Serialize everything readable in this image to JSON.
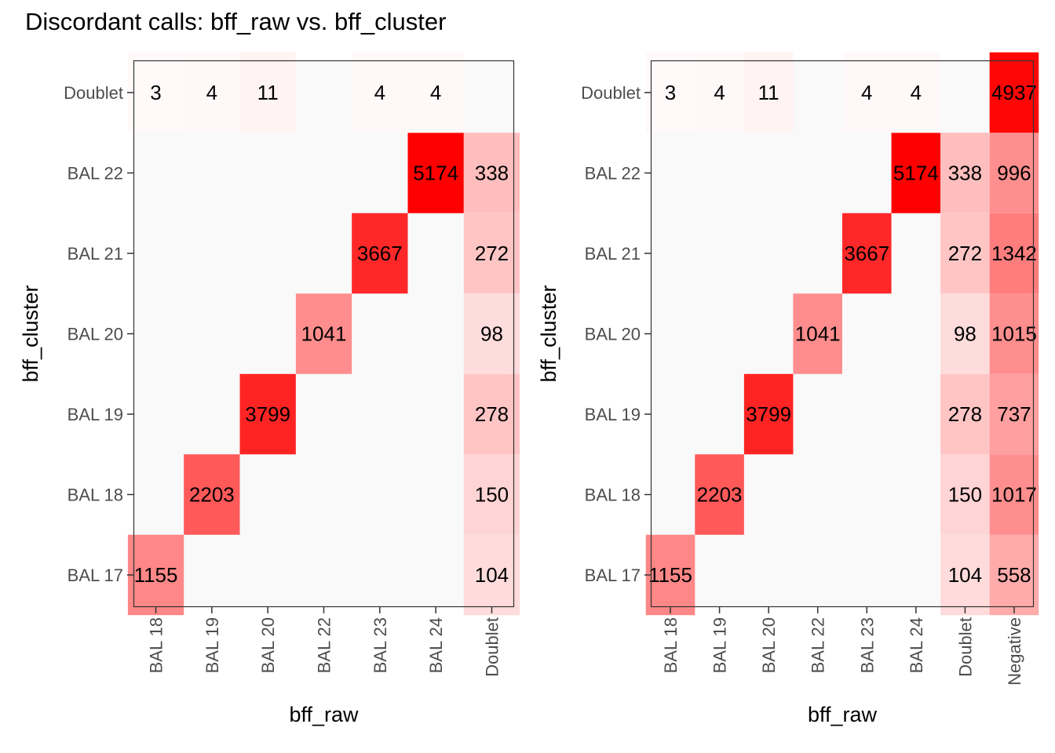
{
  "title": "Discordant calls: bff_raw vs. bff_cluster",
  "colors": {
    "low": "#ffffff",
    "high": "#ff0000",
    "panel_bg": "#f9f9f9",
    "border": "#333333"
  },
  "chart_data": [
    {
      "type": "heatmap",
      "xlabel": "bff_raw",
      "ylabel": "bff_cluster",
      "x_categories": [
        "BAL 18",
        "BAL 19",
        "BAL 20",
        "BAL 22",
        "BAL 23",
        "BAL 24",
        "Doublet"
      ],
      "y_categories": [
        "BAL 17",
        "BAL 18",
        "BAL 19",
        "BAL 20",
        "BAL 21",
        "BAL 22",
        "Doublet"
      ],
      "fill_max": 5174,
      "cells": [
        {
          "x": "BAL 18",
          "y": "BAL 17",
          "value": 1155
        },
        {
          "x": "Doublet",
          "y": "BAL 17",
          "value": 104
        },
        {
          "x": "BAL 19",
          "y": "BAL 18",
          "value": 2203
        },
        {
          "x": "Doublet",
          "y": "BAL 18",
          "value": 150
        },
        {
          "x": "BAL 20",
          "y": "BAL 19",
          "value": 3799
        },
        {
          "x": "Doublet",
          "y": "BAL 19",
          "value": 278
        },
        {
          "x": "BAL 22",
          "y": "BAL 20",
          "value": 1041
        },
        {
          "x": "Doublet",
          "y": "BAL 20",
          "value": 98
        },
        {
          "x": "BAL 23",
          "y": "BAL 21",
          "value": 3667
        },
        {
          "x": "Doublet",
          "y": "BAL 21",
          "value": 272
        },
        {
          "x": "BAL 24",
          "y": "BAL 22",
          "value": 5174
        },
        {
          "x": "Doublet",
          "y": "BAL 22",
          "value": 338
        },
        {
          "x": "BAL 18",
          "y": "Doublet",
          "value": 3
        },
        {
          "x": "BAL 19",
          "y": "Doublet",
          "value": 4
        },
        {
          "x": "BAL 20",
          "y": "Doublet",
          "value": 11
        },
        {
          "x": "BAL 23",
          "y": "Doublet",
          "value": 4
        },
        {
          "x": "BAL 24",
          "y": "Doublet",
          "value": 4
        }
      ]
    },
    {
      "type": "heatmap",
      "xlabel": "bff_raw",
      "ylabel": "bff_cluster",
      "x_categories": [
        "BAL 18",
        "BAL 19",
        "BAL 20",
        "BAL 22",
        "BAL 23",
        "BAL 24",
        "Doublet",
        "Negative"
      ],
      "y_categories": [
        "BAL 17",
        "BAL 18",
        "BAL 19",
        "BAL 20",
        "BAL 21",
        "BAL 22",
        "Doublet"
      ],
      "fill_max": 5174,
      "cells": [
        {
          "x": "BAL 18",
          "y": "BAL 17",
          "value": 1155
        },
        {
          "x": "Doublet",
          "y": "BAL 17",
          "value": 104
        },
        {
          "x": "Negative",
          "y": "BAL 17",
          "value": 558
        },
        {
          "x": "BAL 19",
          "y": "BAL 18",
          "value": 2203
        },
        {
          "x": "Doublet",
          "y": "BAL 18",
          "value": 150
        },
        {
          "x": "Negative",
          "y": "BAL 18",
          "value": 1017
        },
        {
          "x": "BAL 20",
          "y": "BAL 19",
          "value": 3799
        },
        {
          "x": "Doublet",
          "y": "BAL 19",
          "value": 278
        },
        {
          "x": "Negative",
          "y": "BAL 19",
          "value": 737
        },
        {
          "x": "BAL 22",
          "y": "BAL 20",
          "value": 1041
        },
        {
          "x": "Doublet",
          "y": "BAL 20",
          "value": 98
        },
        {
          "x": "Negative",
          "y": "BAL 20",
          "value": 1015
        },
        {
          "x": "BAL 23",
          "y": "BAL 21",
          "value": 3667
        },
        {
          "x": "Doublet",
          "y": "BAL 21",
          "value": 272
        },
        {
          "x": "Negative",
          "y": "BAL 21",
          "value": 1342
        },
        {
          "x": "BAL 24",
          "y": "BAL 22",
          "value": 5174
        },
        {
          "x": "Doublet",
          "y": "BAL 22",
          "value": 338
        },
        {
          "x": "Negative",
          "y": "BAL 22",
          "value": 996
        },
        {
          "x": "BAL 18",
          "y": "Doublet",
          "value": 3
        },
        {
          "x": "BAL 19",
          "y": "Doublet",
          "value": 4
        },
        {
          "x": "BAL 20",
          "y": "Doublet",
          "value": 11
        },
        {
          "x": "BAL 23",
          "y": "Doublet",
          "value": 4
        },
        {
          "x": "BAL 24",
          "y": "Doublet",
          "value": 4
        },
        {
          "x": "Negative",
          "y": "Doublet",
          "value": 4937
        }
      ]
    }
  ]
}
